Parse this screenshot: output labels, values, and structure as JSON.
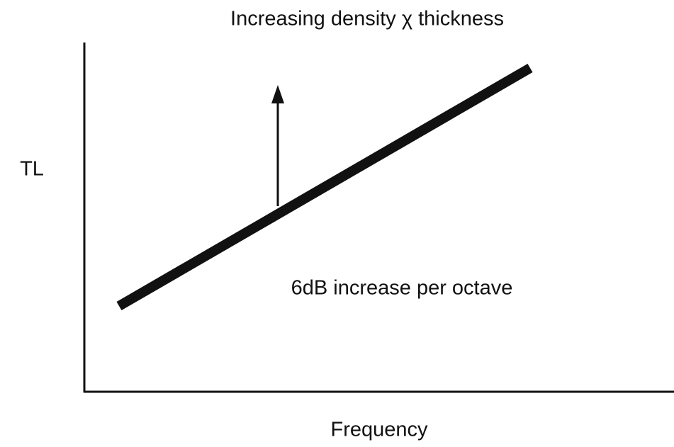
{
  "annotations": {
    "top": "Increasing density χ thickness",
    "slope": "6dB increase per octave"
  },
  "axes": {
    "y_label": "TL",
    "x_label": "Frequency"
  }
}
